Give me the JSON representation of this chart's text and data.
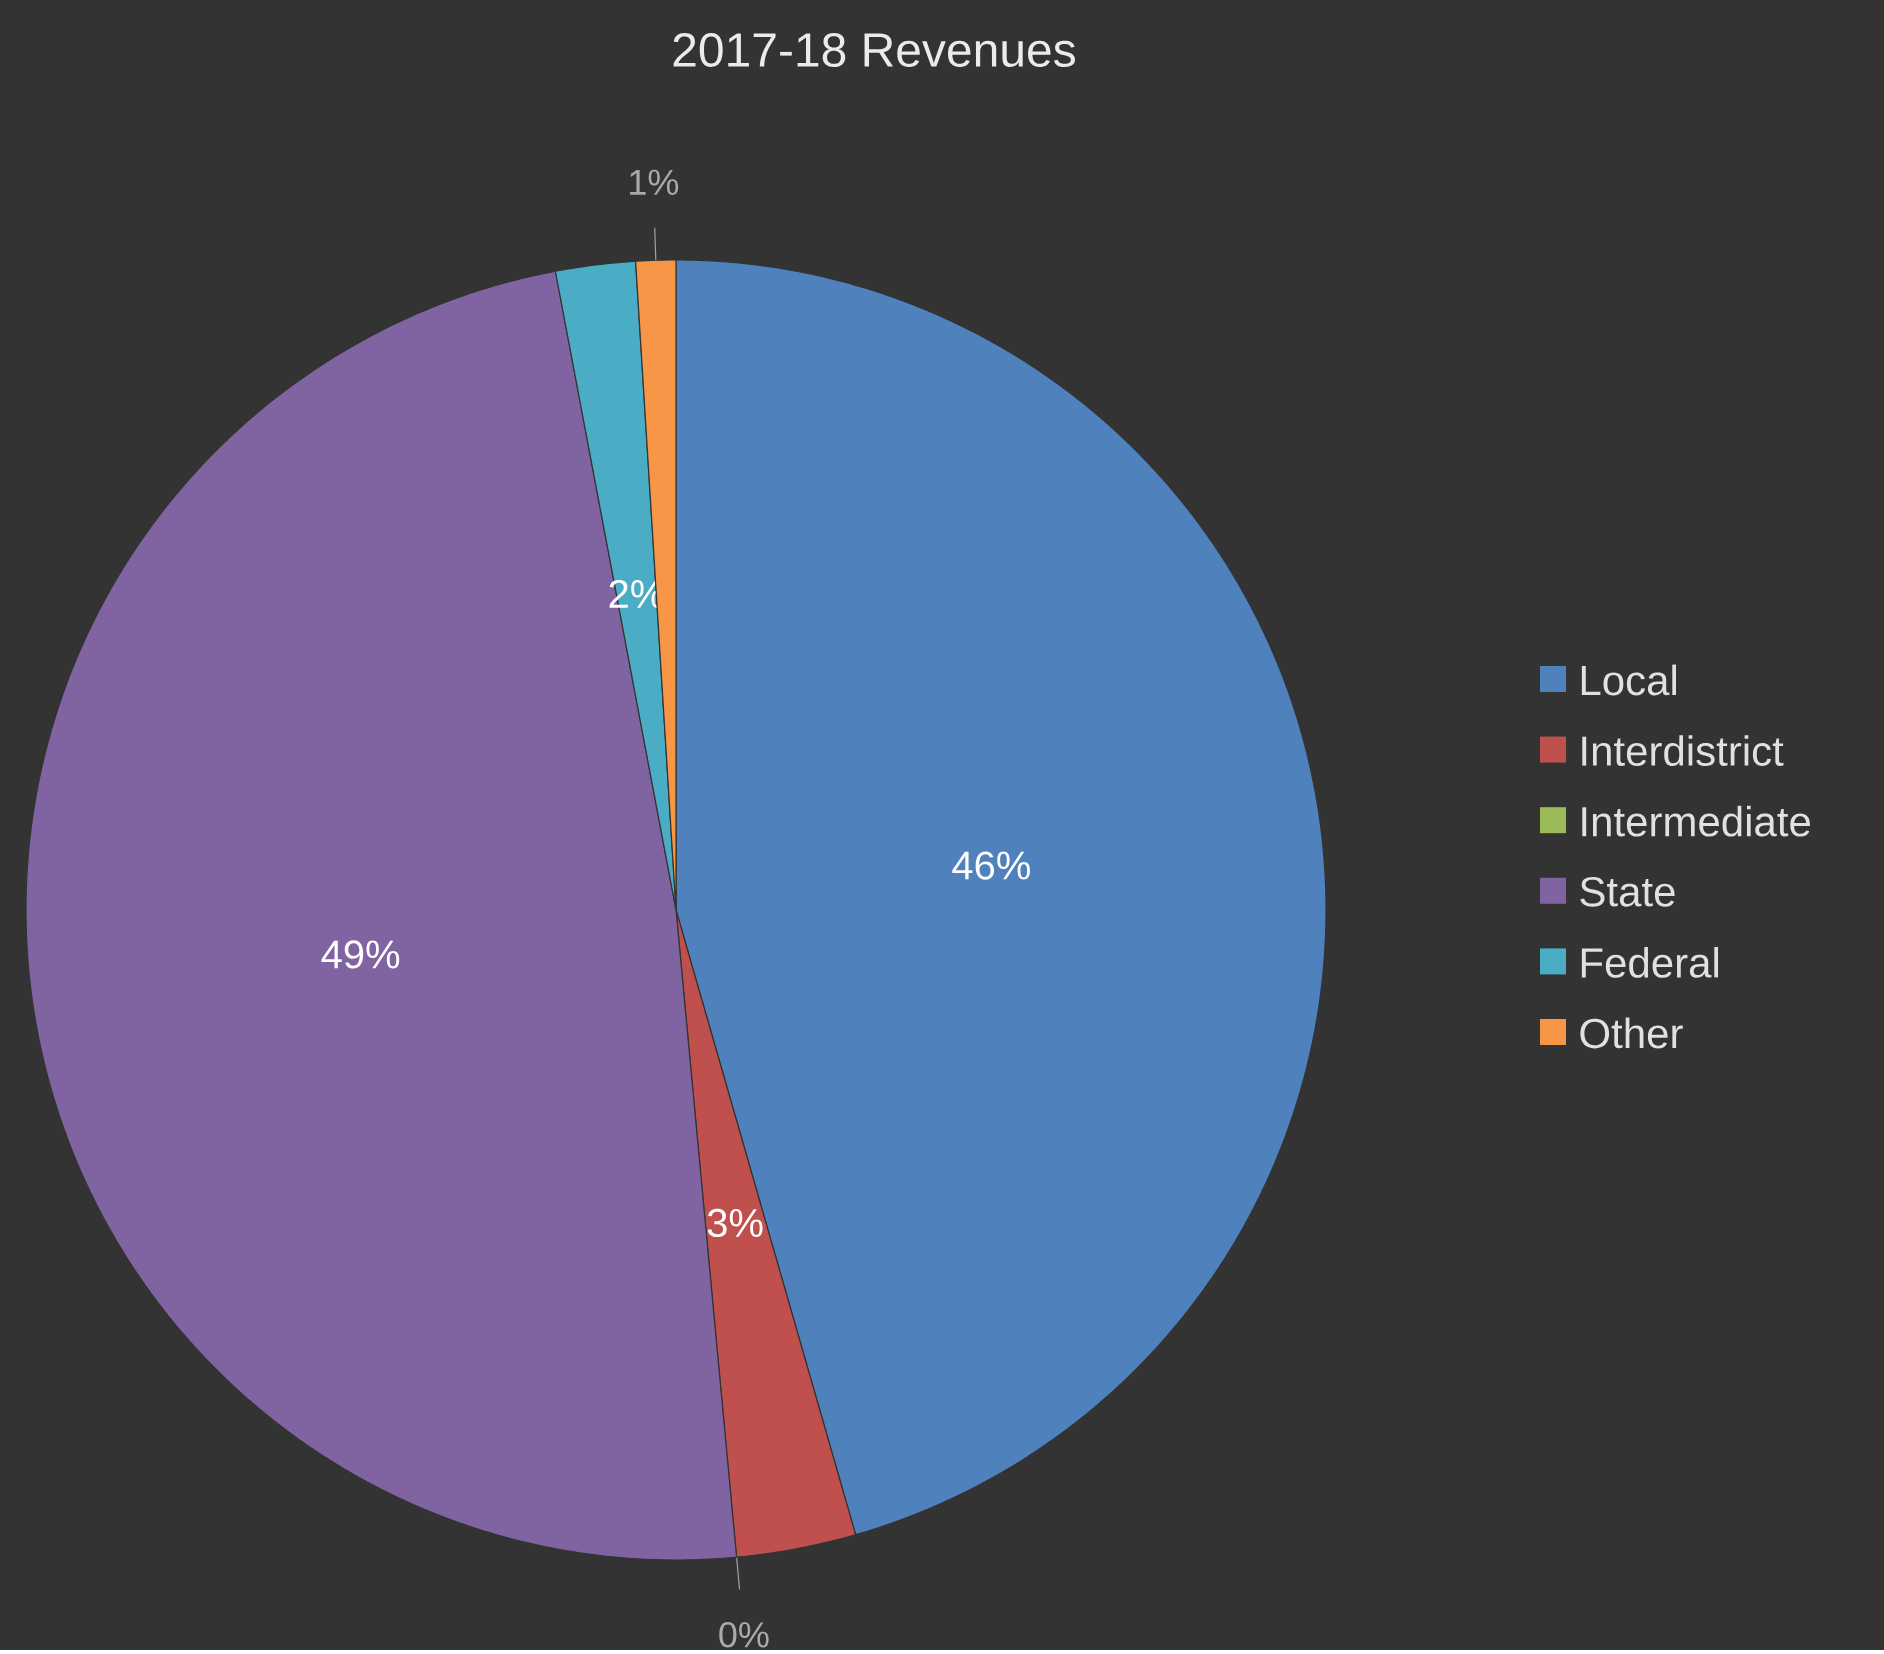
{
  "chart_data": {
    "type": "pie",
    "title": "2017-18 Revenues",
    "categories": [
      "Local",
      "Interdistrict",
      "Intermediate",
      "State",
      "Federal",
      "Other"
    ],
    "values": [
      46,
      3,
      0,
      49,
      2,
      1
    ],
    "value_labels": [
      "46%",
      "3%",
      "0%",
      "49%",
      "2%",
      "1%"
    ],
    "colors": [
      "#4f81bd",
      "#c0504d",
      "#9bbb59",
      "#8064a2",
      "#4bacc6",
      "#f79646"
    ],
    "legend": "right"
  }
}
